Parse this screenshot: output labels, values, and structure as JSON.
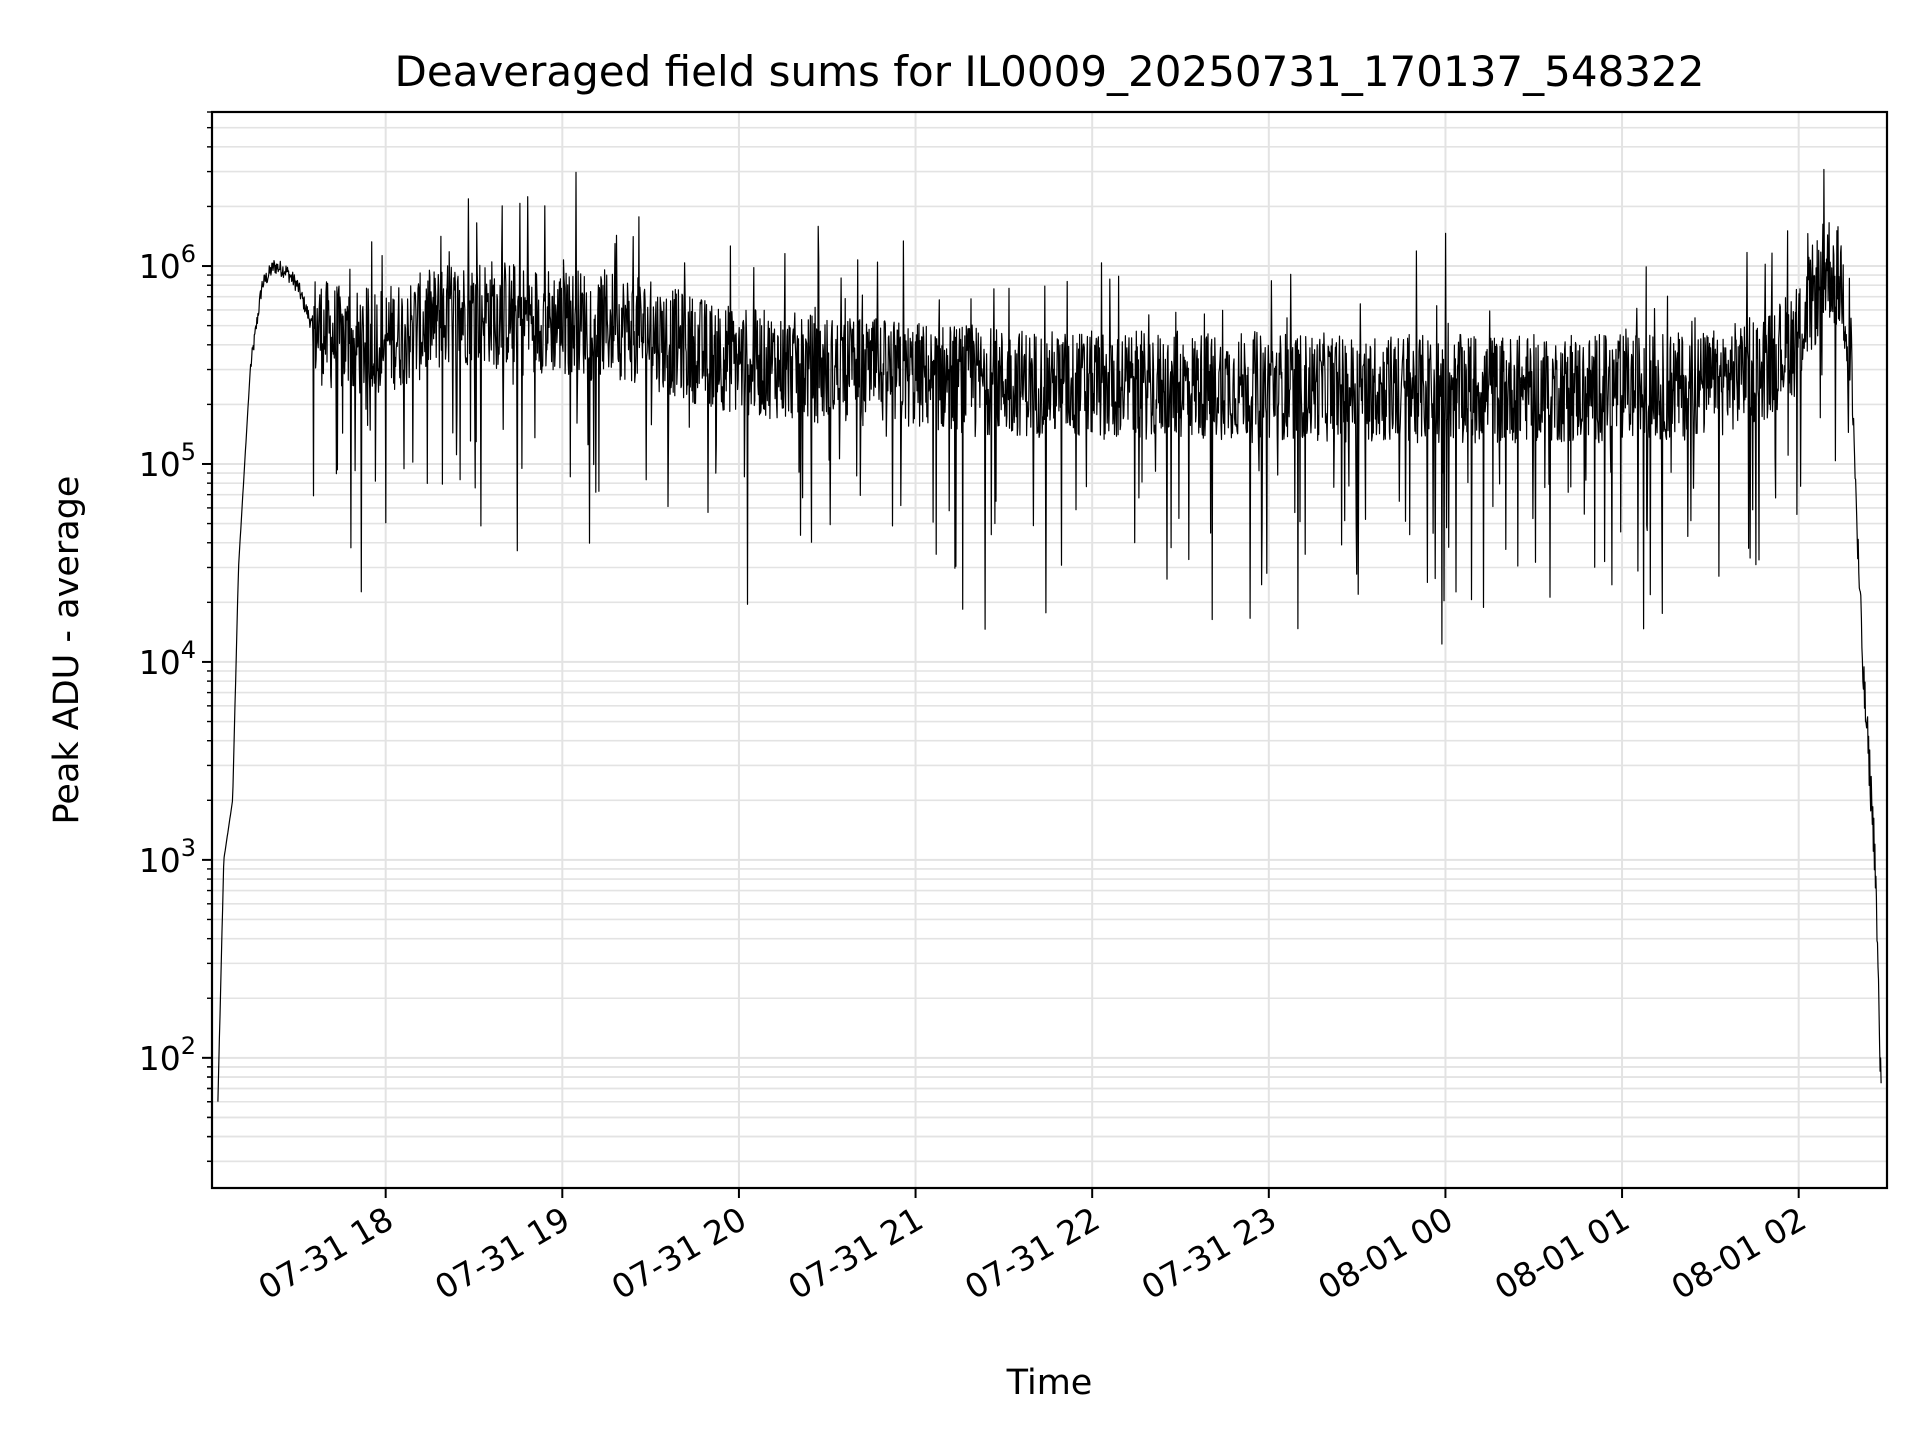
{
  "chart_data": {
    "type": "line",
    "title": "Deaveraged field sums for IL0009_20250731_170137_548322",
    "xlabel": "Time",
    "ylabel": "Peak ADU - average",
    "yscale": "log",
    "ylim": [
      22,
      6000000
    ],
    "xlim": [
      "07-31 17:01",
      "08-01 02:30"
    ],
    "grid": true,
    "line_color": "#000000",
    "grid_color": "#e3e3e3",
    "x_ticks": [
      {
        "value": "07-31 18:00",
        "label": "07-31 18"
      },
      {
        "value": "07-31 19:00",
        "label": "07-31 19"
      },
      {
        "value": "07-31 20:00",
        "label": "07-31 20"
      },
      {
        "value": "07-31 21:00",
        "label": "07-31 21"
      },
      {
        "value": "07-31 22:00",
        "label": "07-31 22"
      },
      {
        "value": "07-31 23:00",
        "label": "07-31 23"
      },
      {
        "value": "08-01 00:00",
        "label": "08-01 00"
      },
      {
        "value": "08-01 01:00",
        "label": "08-01 01"
      },
      {
        "value": "08-01 02:00",
        "label": "08-01 02"
      }
    ],
    "y_ticks": [
      {
        "value": 100,
        "base": "10",
        "exp": "2"
      },
      {
        "value": 1000,
        "base": "10",
        "exp": "3"
      },
      {
        "value": 10000,
        "base": "10",
        "exp": "4"
      },
      {
        "value": 100000,
        "base": "10",
        "exp": "5"
      },
      {
        "value": 1000000,
        "base": "10",
        "exp": "6"
      }
    ],
    "series": [
      {
        "x": [
          "07-31 17:03",
          "07-31 17:05",
          "07-31 17:08",
          "07-31 17:10",
          "07-31 17:14",
          "07-31 17:18",
          "07-31 17:22",
          "07-31 17:26",
          "07-31 17:30",
          "07-31 17:35",
          "07-31 17:40",
          "07-31 17:45",
          "07-31 17:50",
          "07-31 17:55",
          "07-31 18:00",
          "07-31 18:10",
          "07-31 18:20",
          "07-31 18:30",
          "07-31 18:40",
          "07-31 18:50",
          "07-31 19:00",
          "07-31 19:10",
          "07-31 19:20",
          "07-31 19:30",
          "07-31 19:45",
          "07-31 20:00",
          "07-31 20:30",
          "07-31 21:00",
          "07-31 21:30",
          "07-31 22:00",
          "07-31 22:30",
          "07-31 23:00",
          "07-31 23:30",
          "08-01 00:00",
          "08-01 00:30",
          "08-01 01:00",
          "08-01 01:30",
          "08-01 01:50",
          "08-01 02:00",
          "08-01 02:05",
          "08-01 02:10",
          "08-01 02:15",
          "08-01 02:18",
          "08-01 02:20",
          "08-01 02:22",
          "08-01 02:24",
          "08-01 02:26",
          "08-01 02:28"
        ],
        "y": [
          60,
          1000,
          2000,
          30000,
          300000,
          800000,
          1000000,
          950000,
          800000,
          500000,
          450000,
          420000,
          400000,
          420000,
          430000,
          480000,
          550000,
          600000,
          580000,
          550000,
          520000,
          520000,
          500000,
          450000,
          380000,
          330000,
          300000,
          280000,
          260000,
          250000,
          250000,
          250000,
          240000,
          240000,
          240000,
          240000,
          250000,
          320000,
          450000,
          700000,
          1000000,
          800000,
          300000,
          40000,
          8000,
          3000,
          1000,
          60
        ]
      }
    ]
  }
}
